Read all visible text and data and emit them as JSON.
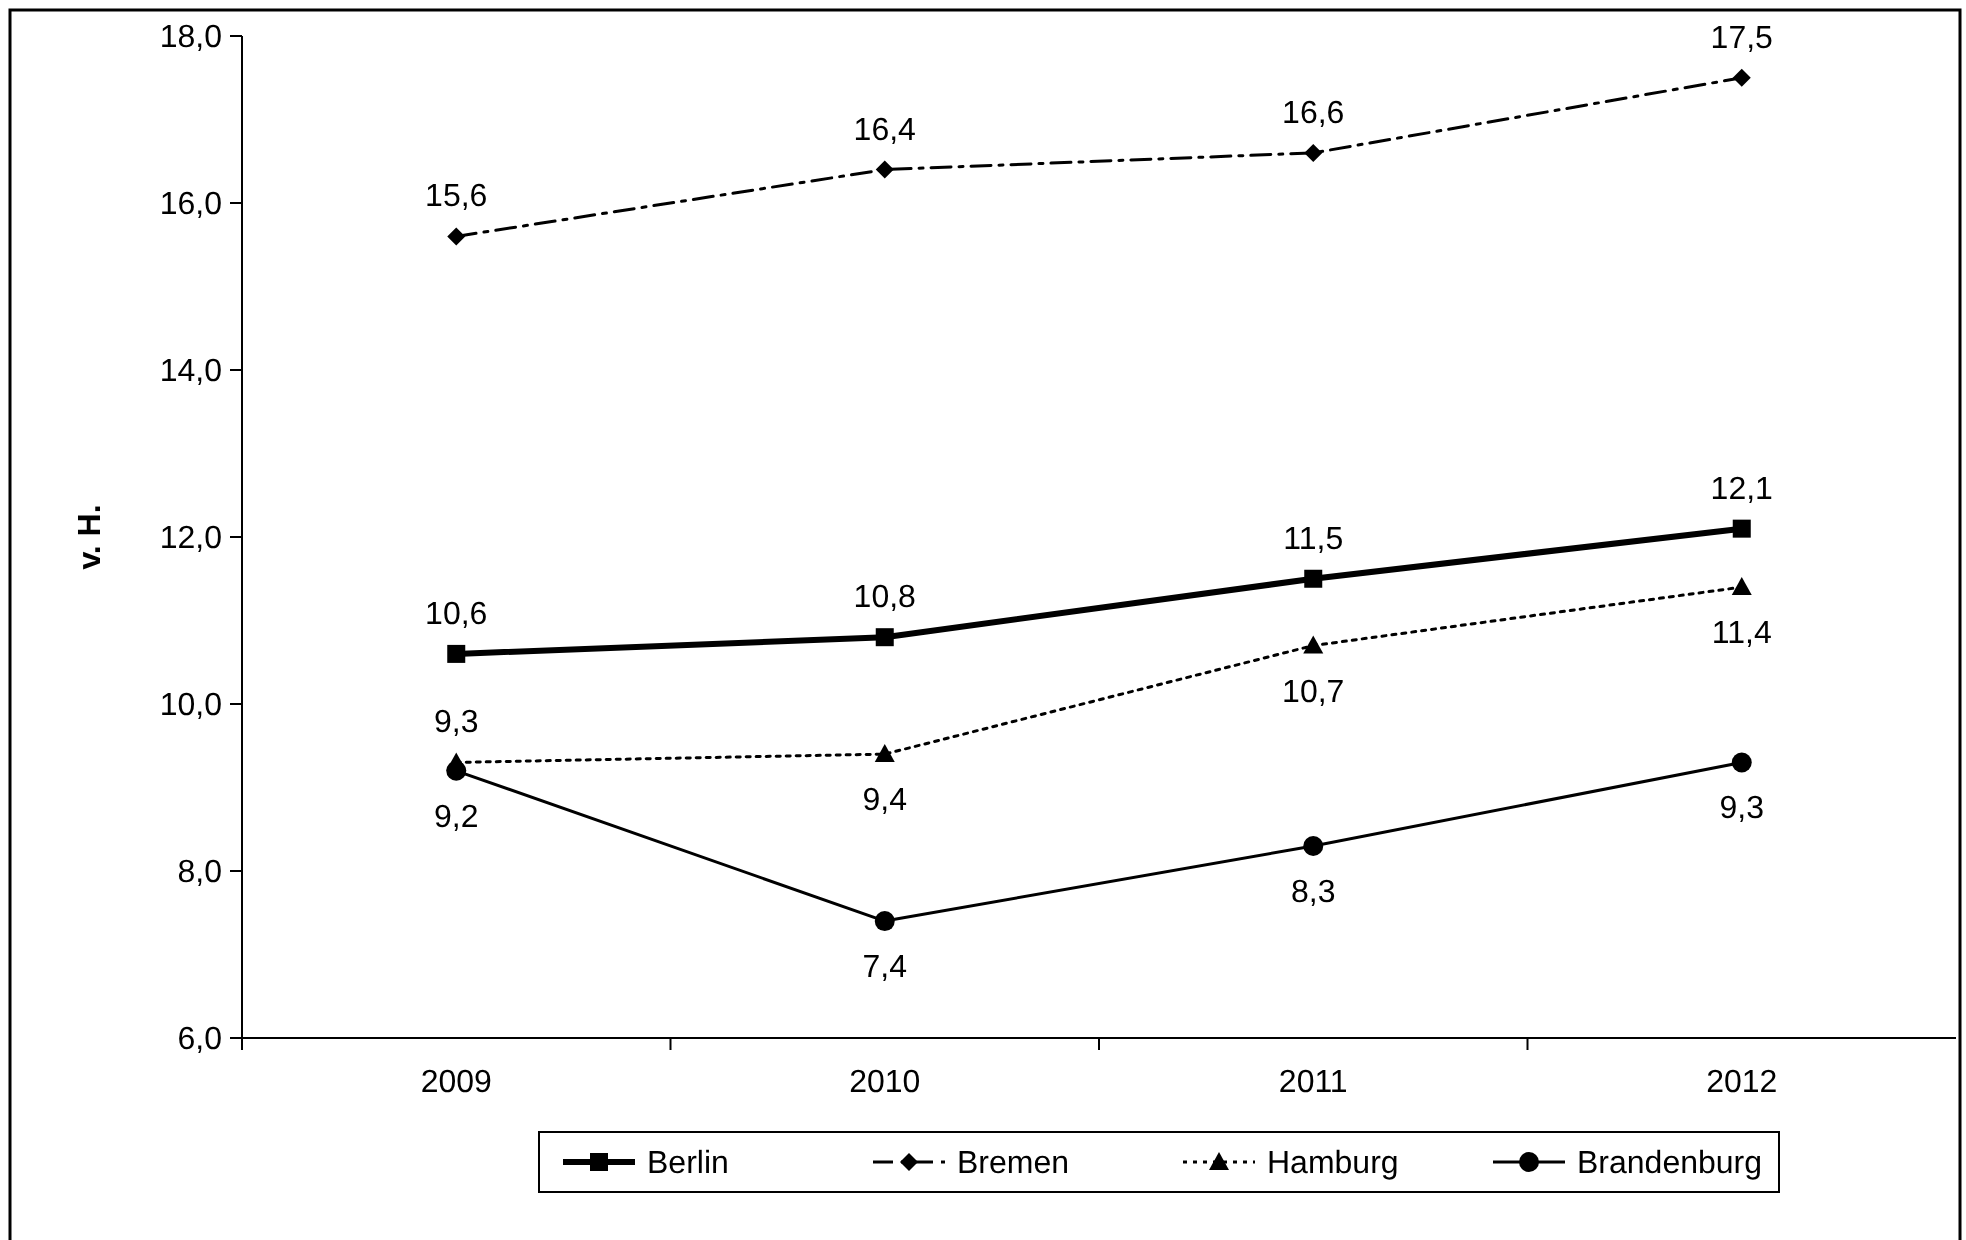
{
  "chart_data": {
    "type": "line",
    "ylabel": "v. H.",
    "categories": [
      "2009",
      "2010",
      "2011",
      "2012"
    ],
    "ylim": [
      6,
      18
    ],
    "yticks": [
      {
        "value": 6,
        "label": "6,0"
      },
      {
        "value": 8,
        "label": "8,0"
      },
      {
        "value": 10,
        "label": "10,0"
      },
      {
        "value": 12,
        "label": "12,0"
      },
      {
        "value": 14,
        "label": "14,0"
      },
      {
        "value": 16,
        "label": "16,0"
      },
      {
        "value": 18,
        "label": "18,0"
      }
    ],
    "grid": false,
    "legend": "bottom",
    "series": [
      {
        "name": "Berlin",
        "color": "#000000",
        "values": [
          10.6,
          10.8,
          11.5,
          12.1
        ],
        "value_labels": [
          "10,6",
          "10,8",
          "11,5",
          "12,1"
        ],
        "marker": "square",
        "line_style": "solid"
      },
      {
        "name": "Bremen",
        "color": "#000000",
        "values": [
          15.6,
          16.4,
          16.6,
          17.5
        ],
        "value_labels": [
          "15,6",
          "16,4",
          "16,6",
          "17,5"
        ],
        "marker": "diamond",
        "line_style": "dashed"
      },
      {
        "name": "Hamburg",
        "color": "#000000",
        "values": [
          9.3,
          9.4,
          10.7,
          11.4
        ],
        "value_labels": [
          "9,3",
          "9,4",
          "10,7",
          "11,4"
        ],
        "marker": "triangle",
        "line_style": "dotted"
      },
      {
        "name": "Brandenburg",
        "color": "#000000",
        "values": [
          9.2,
          7.4,
          8.3,
          9.3
        ],
        "value_labels": [
          "9,2",
          "7,4",
          "8,3",
          "9,3"
        ],
        "marker": "circle",
        "line_style": "solid"
      }
    ]
  }
}
